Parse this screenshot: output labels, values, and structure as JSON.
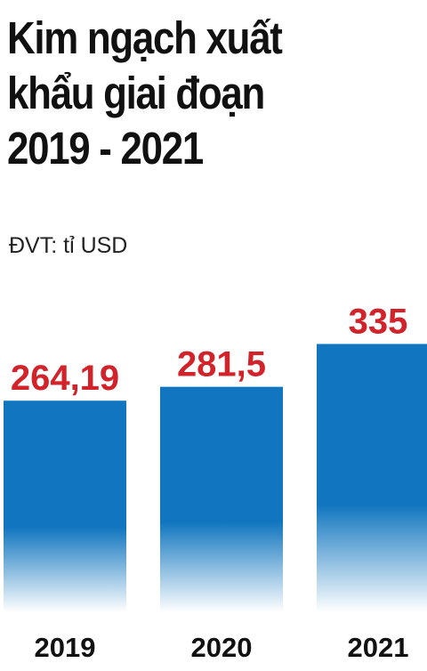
{
  "title_lines": [
    "Kim ngạch xuất",
    "khẩu giai đoạn",
    "2019 - 2021"
  ],
  "unit_label": "ĐVT: tỉ USD",
  "colors": {
    "bar_top": "#1176bf",
    "bar_bottom": "#ffffff",
    "value_label": "#d2232a",
    "text": "#111111"
  },
  "chart_data": {
    "type": "bar",
    "title": "Kim ngạch xuất khẩu giai đoạn 2019 - 2021",
    "ylabel": "ĐVT: tỉ USD",
    "xlabel": "",
    "categories": [
      "2019",
      "2020",
      "2021"
    ],
    "values": [
      264.19,
      281.5,
      335
    ],
    "value_labels": [
      "264,19",
      "281,5",
      "335"
    ],
    "ylim": [
      0,
      410
    ],
    "grid": false,
    "legend": "none"
  }
}
